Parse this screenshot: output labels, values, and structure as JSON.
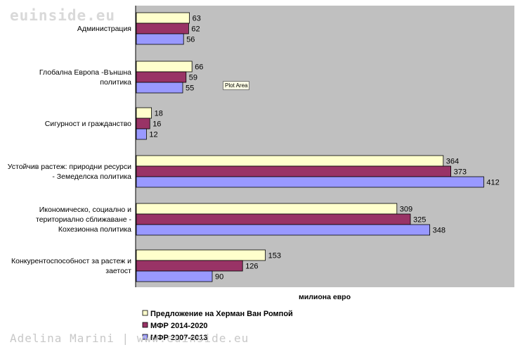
{
  "watermarks": {
    "top": "euinside.eu",
    "bottom": "Adelina Marini | www.euinside.eu"
  },
  "tooltip": "Plot Area",
  "chart_data": {
    "type": "bar",
    "orientation": "horizontal",
    "title": "",
    "xlabel": "милиона евро",
    "ylabel": "",
    "xlim": [
      0,
      420
    ],
    "grid": false,
    "legend_position": "bottom-left",
    "categories": [
      {
        "lines": [
          "Администрация"
        ]
      },
      {
        "lines": [
          "Глобална Европа -Външна",
          "политика"
        ]
      },
      {
        "lines": [
          "Сигурност и гражданство"
        ]
      },
      {
        "lines": [
          "Устойчив растеж: природни ресурси",
          "-  Земеделска политика"
        ]
      },
      {
        "lines": [
          "Икономическо, социално и",
          "териториално сближаване -",
          "Кохезионна политика"
        ]
      },
      {
        "lines": [
          "Конкурентоспособност за растеж и",
          "заетост"
        ]
      }
    ],
    "series": [
      {
        "name": "Предложение на Херман Ван Ромпой",
        "color": "#ffffcc",
        "values": [
          63,
          66,
          18,
          364,
          309,
          153
        ]
      },
      {
        "name": "МФР 2014-2020",
        "color": "#993366",
        "values": [
          62,
          59,
          16,
          373,
          325,
          126
        ]
      },
      {
        "name": "МФР 2007-2013",
        "color": "#9999ff",
        "values": [
          56,
          55,
          12,
          412,
          348,
          90
        ]
      }
    ]
  }
}
